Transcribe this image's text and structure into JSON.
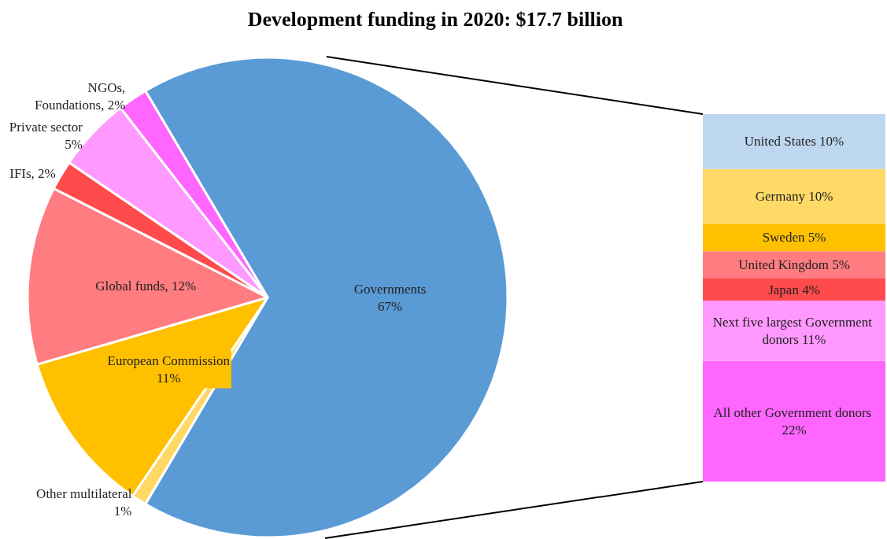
{
  "chart_data": [
    {
      "type": "pie",
      "title": "Development funding in 2020: $17.7 billion",
      "categories": [
        "Governments",
        "Other multilateral",
        "European Commission",
        "Global funds",
        "IFIs",
        "Private sector",
        "NGOs,\nFoundations"
      ],
      "values": [
        67,
        1,
        11,
        12,
        2,
        5,
        2
      ],
      "value_labels": [
        "67%",
        "1%",
        "11%",
        "12%",
        "2%",
        "5%",
        "2%"
      ],
      "colors": [
        "#5b9bd5",
        "#ffd966",
        "#ffc000",
        "#ff7c80",
        "#ff4b4b",
        "#ff99ff",
        "#ff66ff"
      ],
      "legend": false
    },
    {
      "type": "bar",
      "stacked": true,
      "categories": [
        null
      ],
      "legend": false,
      "series": [
        {
          "name": "All other Government donors",
          "color": "#ff66ff",
          "values": [
            22
          ],
          "value_labels": [
            "22%"
          ]
        },
        {
          "name": "Next five largest Government donors",
          "color": "#ff99ff",
          "values": [
            11
          ],
          "value_labels": [
            "11%"
          ]
        },
        {
          "name": "Japan",
          "color": "#ff4b4b",
          "values": [
            4
          ],
          "value_labels": [
            "4%"
          ]
        },
        {
          "name": "United Kingdom",
          "color": "#ff7c80",
          "values": [
            5
          ],
          "value_labels": [
            "5%"
          ]
        },
        {
          "name": "Sweden",
          "color": "#ffc000",
          "values": [
            5
          ],
          "value_labels": [
            "5%"
          ]
        },
        {
          "name": "Germany",
          "color": "#ffd966",
          "values": [
            10
          ],
          "value_labels": [
            "10%"
          ]
        },
        {
          "name": "United States",
          "color": "#bdd7ee",
          "values": [
            10
          ],
          "value_labels": [
            "10%"
          ]
        }
      ]
    }
  ]
}
